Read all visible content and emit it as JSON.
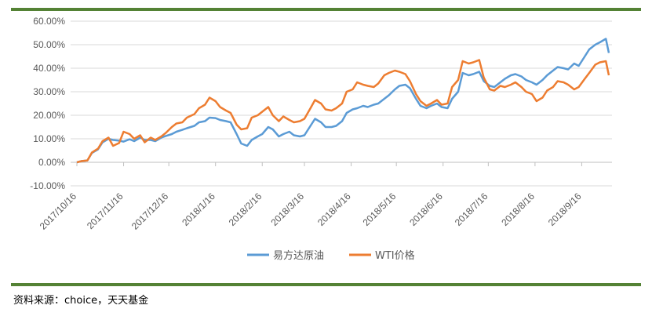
{
  "source_text": "资料来源：choice，天天基金",
  "colors": {
    "frame_rule": "#548235",
    "series_1": "#5B9BD5",
    "series_2": "#ED7D31"
  },
  "chart_data": {
    "type": "line",
    "title": "",
    "xlabel": "",
    "ylabel": "",
    "ylim": [
      -0.1,
      0.6
    ],
    "y_ticks": [
      "60.00%",
      "50.00%",
      "40.00%",
      "30.00%",
      "20.00%",
      "10.00%",
      "0.00%",
      "-10.00%"
    ],
    "x_ticks": [
      "2017/10/16",
      "2017/11/16",
      "2017/12/16",
      "2018/1/16",
      "2018/2/16",
      "2018/3/16",
      "2018/4/16",
      "2018/5/16",
      "2018/6/16",
      "2018/7/16",
      "2018/8/16",
      "2018/9/16"
    ],
    "grid": true,
    "legend": "bottom",
    "series": [
      {
        "name": "易方达原油",
        "color": "#5B9BD5",
        "x": [
          "2017-10-16",
          "2017-10-19",
          "2017-10-23",
          "2017-10-26",
          "2017-10-30",
          "2017-11-02",
          "2017-11-06",
          "2017-11-09",
          "2017-11-13",
          "2017-11-16",
          "2017-11-20",
          "2017-11-23",
          "2017-11-27",
          "2017-11-30",
          "2017-12-04",
          "2017-12-07",
          "2017-12-11",
          "2017-12-14",
          "2017-12-18",
          "2017-12-21",
          "2017-12-25",
          "2017-12-28",
          "2018-01-02",
          "2018-01-05",
          "2018-01-09",
          "2018-01-12",
          "2018-01-16",
          "2018-01-19",
          "2018-01-23",
          "2018-01-26",
          "2018-01-30",
          "2018-02-02",
          "2018-02-06",
          "2018-02-09",
          "2018-02-13",
          "2018-02-16",
          "2018-02-20",
          "2018-02-23",
          "2018-02-27",
          "2018-03-02",
          "2018-03-06",
          "2018-03-09",
          "2018-03-13",
          "2018-03-16",
          "2018-03-20",
          "2018-03-23",
          "2018-03-27",
          "2018-03-30",
          "2018-04-03",
          "2018-04-06",
          "2018-04-10",
          "2018-04-13",
          "2018-04-17",
          "2018-04-20",
          "2018-04-24",
          "2018-04-27",
          "2018-05-01",
          "2018-05-04",
          "2018-05-08",
          "2018-05-11",
          "2018-05-15",
          "2018-05-18",
          "2018-05-22",
          "2018-05-25",
          "2018-05-29",
          "2018-06-01",
          "2018-06-05",
          "2018-06-08",
          "2018-06-12",
          "2018-06-15",
          "2018-06-19",
          "2018-06-22",
          "2018-06-26",
          "2018-06-29",
          "2018-07-03",
          "2018-07-06",
          "2018-07-10",
          "2018-07-13",
          "2018-07-17",
          "2018-07-20",
          "2018-07-24",
          "2018-07-27",
          "2018-07-31",
          "2018-08-03",
          "2018-08-07",
          "2018-08-10",
          "2018-08-14",
          "2018-08-17",
          "2018-08-21",
          "2018-08-24",
          "2018-08-28",
          "2018-08-31",
          "2018-09-04",
          "2018-09-07",
          "2018-09-11",
          "2018-09-14",
          "2018-09-18",
          "2018-09-21",
          "2018-09-25",
          "2018-09-28",
          "2018-10-02",
          "2018-10-04"
        ],
        "values": [
          0.0,
          0.005,
          0.008,
          0.04,
          0.055,
          0.085,
          0.1,
          0.095,
          0.092,
          0.088,
          0.098,
          0.09,
          0.105,
          0.095,
          0.095,
          0.09,
          0.105,
          0.112,
          0.12,
          0.13,
          0.138,
          0.145,
          0.155,
          0.17,
          0.175,
          0.19,
          0.188,
          0.18,
          0.175,
          0.17,
          0.12,
          0.08,
          0.07,
          0.095,
          0.11,
          0.12,
          0.15,
          0.14,
          0.11,
          0.12,
          0.13,
          0.115,
          0.11,
          0.115,
          0.155,
          0.185,
          0.17,
          0.15,
          0.15,
          0.155,
          0.175,
          0.21,
          0.225,
          0.23,
          0.24,
          0.235,
          0.245,
          0.25,
          0.27,
          0.285,
          0.31,
          0.325,
          0.33,
          0.315,
          0.27,
          0.24,
          0.23,
          0.24,
          0.25,
          0.235,
          0.23,
          0.27,
          0.3,
          0.38,
          0.37,
          0.375,
          0.385,
          0.345,
          0.325,
          0.32,
          0.34,
          0.355,
          0.37,
          0.375,
          0.365,
          0.35,
          0.34,
          0.33,
          0.35,
          0.37,
          0.39,
          0.405,
          0.4,
          0.395,
          0.42,
          0.41,
          0.45,
          0.48,
          0.5,
          0.51,
          0.525,
          0.465
        ]
      },
      {
        "name": "WTI价格",
        "color": "#ED7D31",
        "x": [
          "2017-10-16",
          "2017-10-19",
          "2017-10-23",
          "2017-10-26",
          "2017-10-30",
          "2017-11-02",
          "2017-11-06",
          "2017-11-09",
          "2017-11-13",
          "2017-11-16",
          "2017-11-20",
          "2017-11-23",
          "2017-11-27",
          "2017-11-30",
          "2017-12-04",
          "2017-12-07",
          "2017-12-11",
          "2017-12-14",
          "2017-12-18",
          "2017-12-21",
          "2017-12-25",
          "2017-12-28",
          "2018-01-02",
          "2018-01-05",
          "2018-01-09",
          "2018-01-12",
          "2018-01-16",
          "2018-01-19",
          "2018-01-23",
          "2018-01-26",
          "2018-01-30",
          "2018-02-02",
          "2018-02-06",
          "2018-02-09",
          "2018-02-13",
          "2018-02-16",
          "2018-02-20",
          "2018-02-23",
          "2018-02-27",
          "2018-03-02",
          "2018-03-06",
          "2018-03-09",
          "2018-03-13",
          "2018-03-16",
          "2018-03-20",
          "2018-03-23",
          "2018-03-27",
          "2018-03-30",
          "2018-04-03",
          "2018-04-06",
          "2018-04-10",
          "2018-04-13",
          "2018-04-17",
          "2018-04-20",
          "2018-04-24",
          "2018-04-27",
          "2018-05-01",
          "2018-05-04",
          "2018-05-08",
          "2018-05-11",
          "2018-05-15",
          "2018-05-18",
          "2018-05-22",
          "2018-05-25",
          "2018-05-29",
          "2018-06-01",
          "2018-06-05",
          "2018-06-08",
          "2018-06-12",
          "2018-06-15",
          "2018-06-19",
          "2018-06-22",
          "2018-06-26",
          "2018-06-29",
          "2018-07-03",
          "2018-07-06",
          "2018-07-10",
          "2018-07-13",
          "2018-07-17",
          "2018-07-20",
          "2018-07-24",
          "2018-07-27",
          "2018-07-31",
          "2018-08-03",
          "2018-08-07",
          "2018-08-10",
          "2018-08-14",
          "2018-08-17",
          "2018-08-21",
          "2018-08-24",
          "2018-08-28",
          "2018-08-31",
          "2018-09-04",
          "2018-09-07",
          "2018-09-11",
          "2018-09-14",
          "2018-09-18",
          "2018-09-21",
          "2018-09-25",
          "2018-09-28",
          "2018-10-02",
          "2018-10-04"
        ],
        "values": [
          0.0,
          0.005,
          0.008,
          0.042,
          0.058,
          0.09,
          0.105,
          0.07,
          0.082,
          0.13,
          0.12,
          0.1,
          0.115,
          0.085,
          0.105,
          0.095,
          0.11,
          0.125,
          0.15,
          0.165,
          0.17,
          0.19,
          0.205,
          0.23,
          0.245,
          0.275,
          0.26,
          0.235,
          0.22,
          0.21,
          0.16,
          0.14,
          0.145,
          0.19,
          0.2,
          0.215,
          0.235,
          0.2,
          0.175,
          0.195,
          0.18,
          0.17,
          0.175,
          0.185,
          0.23,
          0.265,
          0.25,
          0.225,
          0.22,
          0.23,
          0.25,
          0.3,
          0.31,
          0.34,
          0.33,
          0.325,
          0.32,
          0.335,
          0.37,
          0.38,
          0.39,
          0.385,
          0.375,
          0.345,
          0.29,
          0.26,
          0.24,
          0.25,
          0.265,
          0.245,
          0.25,
          0.32,
          0.35,
          0.43,
          0.42,
          0.425,
          0.435,
          0.36,
          0.31,
          0.305,
          0.325,
          0.32,
          0.33,
          0.34,
          0.32,
          0.3,
          0.29,
          0.26,
          0.275,
          0.305,
          0.32,
          0.345,
          0.34,
          0.33,
          0.31,
          0.32,
          0.355,
          0.38,
          0.415,
          0.425,
          0.43,
          0.37
        ]
      }
    ]
  }
}
